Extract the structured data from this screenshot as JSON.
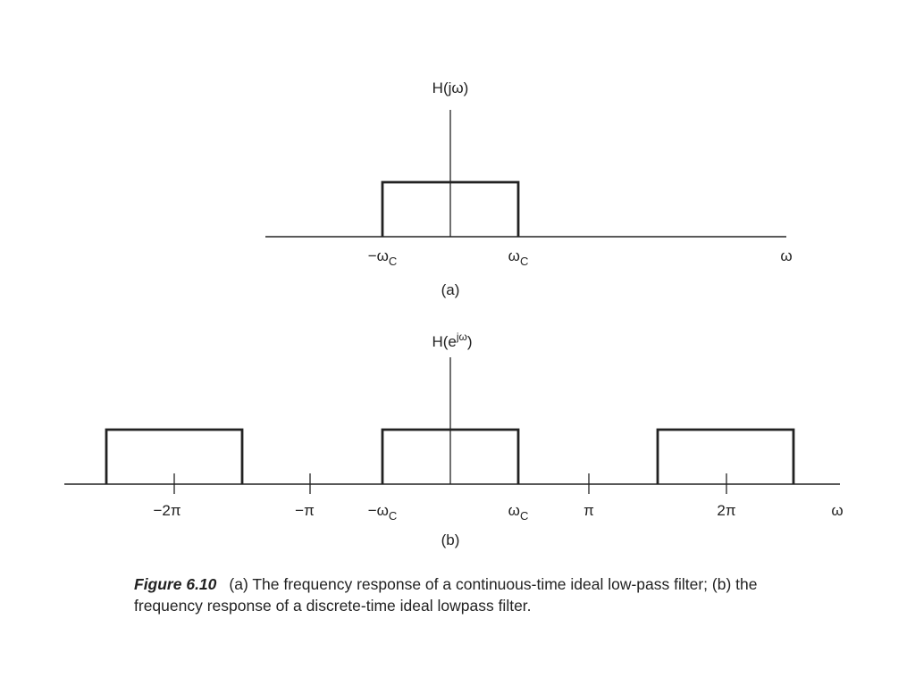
{
  "diagram_a": {
    "y_label": "H(jω)",
    "x_label": "ω",
    "tick_labels": [
      {
        "text": "−ω",
        "sub": "C"
      },
      {
        "text": "ω",
        "sub": "C"
      }
    ],
    "panel_label": "(a)"
  },
  "diagram_b": {
    "y_label_base": "H(e",
    "y_label_sup": "jω",
    "y_label_end": ")",
    "x_label": "ω",
    "tick_labels": [
      {
        "text": "−2π"
      },
      {
        "text": "−π"
      },
      {
        "text": "−ω",
        "sub": "C"
      },
      {
        "text": "ω",
        "sub": "C"
      },
      {
        "text": "π"
      },
      {
        "text": "2π"
      }
    ],
    "panel_label": "(b)"
  },
  "caption": {
    "figure_number": "Figure 6.10",
    "text": "(a) The frequency response of a continuous-time ideal low-pass filter; (b) the frequency response of a discrete-time ideal lowpass filter."
  }
}
